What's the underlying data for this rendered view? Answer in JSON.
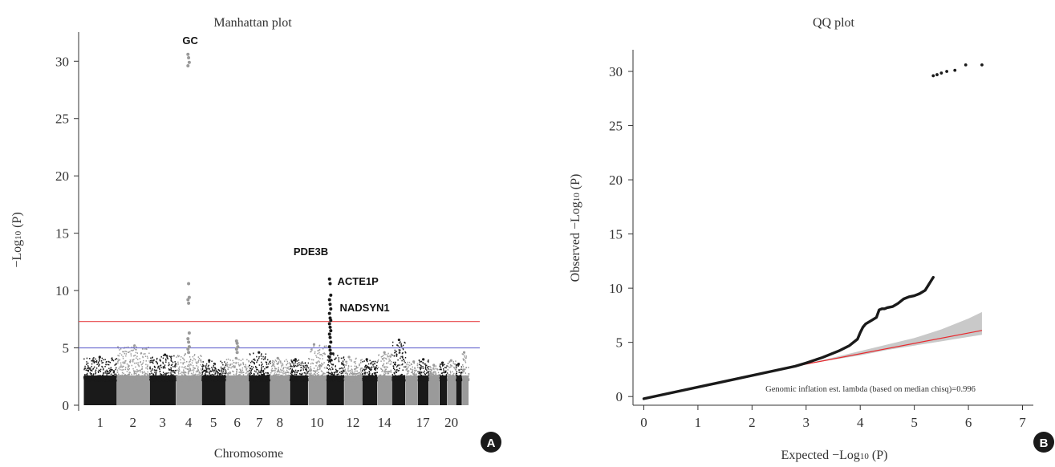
{
  "panel_a_badge": "A",
  "panel_b_badge": "B",
  "colors": {
    "dark": "#1a1a1a",
    "light": "#9a9a9a",
    "genome_wide_line": "#e8474a",
    "suggestive_line": "#6a6ad0",
    "fit_line": "#e8292e",
    "ci_band": "#c9c9c9"
  },
  "chart_data": [
    {
      "type": "scatter",
      "title": "Manhattan plot",
      "xlabel": "Chromosome",
      "ylabel_main": "−Log",
      "ylabel_sub": "10",
      "ylabel_rest": " (P)",
      "ylim": [
        0,
        31
      ],
      "y_ticks": [
        "0",
        "5",
        "10",
        "15",
        "20",
        "25",
        "30"
      ],
      "chromosomes": [
        "1",
        "2",
        "3",
        "4",
        "5",
        "6",
        "7",
        "8",
        "9",
        "10",
        "11",
        "12",
        "13",
        "14",
        "15",
        "16",
        "17",
        "18",
        "19",
        "20",
        "21",
        "22"
      ],
      "x_tick_labels": [
        "1",
        "2",
        "3",
        "4",
        "5",
        "6",
        "7",
        "8",
        "10",
        "12",
        "14",
        "17",
        "20"
      ],
      "x_tick_chromosomes": [
        "1",
        "2",
        "3",
        "4",
        "5",
        "6",
        "7",
        "8",
        "10",
        "12",
        "14",
        "17",
        "20"
      ],
      "thresholds": [
        {
          "name": "genome-wide",
          "value": 7.3
        },
        {
          "name": "suggestive",
          "value": 5.0
        }
      ],
      "background_max": [
        4.2,
        5.2,
        4.4,
        4.6,
        3.9,
        4.1,
        4.6,
        4.1,
        4.0,
        5.3,
        4.5,
        4.2,
        4.0,
        4.6,
        5.7,
        3.8,
        4.0,
        3.5,
        3.7,
        3.9,
        3.6,
        4.6
      ],
      "annotations": [
        {
          "label": "GC",
          "chromosome": "4",
          "y": 31.5
        },
        {
          "label": "PDE3B",
          "chromosome": "11",
          "y": 13.1
        },
        {
          "label": "ACTE1P",
          "chromosome": "11",
          "y": 10.5
        },
        {
          "label": "NADSYN1",
          "chromosome": "11",
          "y": 8.2
        }
      ],
      "peaks": [
        {
          "chromosome": "4",
          "y": [
            30.6,
            30.3,
            29.9,
            29.6,
            10.6,
            9.4,
            9.2,
            8.9,
            6.3,
            5.8,
            5.5,
            5.1,
            4.9,
            4.6
          ]
        },
        {
          "chromosome": "11",
          "y": [
            11.0,
            10.6,
            9.6,
            9.2,
            8.8,
            8.4,
            8.0,
            7.6,
            7.4,
            7.1,
            6.8,
            6.5,
            6.2,
            5.9,
            5.5,
            5.1,
            4.8,
            4.5,
            4.2,
            3.9
          ]
        },
        {
          "chromosome": "6",
          "y": [
            5.6,
            5.4,
            5.1,
            4.9,
            4.6
          ]
        }
      ]
    },
    {
      "type": "scatter",
      "title": "QQ plot",
      "xlabel_main": "Expected −Log",
      "xlabel_sub": "10",
      "xlabel_rest": " (P)",
      "ylabel_main": "Observed −Log",
      "ylabel_sub": "10",
      "ylabel_rest": " (P)",
      "xlim": [
        -0.2,
        7.2
      ],
      "ylim": [
        -0.8,
        32
      ],
      "x_ticks": [
        "0",
        "1",
        "2",
        "3",
        "4",
        "5",
        "6",
        "7"
      ],
      "y_ticks": [
        "0",
        "5",
        "10",
        "15",
        "20",
        "25",
        "30"
      ],
      "annotation": "Genomic inflation est. lambda (based on median chisq)=0.996",
      "lambda": 0.996,
      "fit_line": {
        "x": [
          2.9,
          6.25
        ],
        "y": [
          2.9,
          6.1
        ]
      },
      "ci_band": {
        "x": [
          2.9,
          3.5,
          4.0,
          4.5,
          5.0,
          5.5,
          6.0,
          6.25
        ],
        "lower": [
          2.9,
          3.4,
          3.8,
          4.3,
          4.7,
          5.1,
          5.5,
          5.7
        ],
        "upper": [
          2.9,
          3.6,
          4.2,
          4.8,
          5.4,
          6.2,
          7.2,
          7.8
        ]
      },
      "deviation_curve": {
        "x": [
          2.8,
          3.0,
          3.3,
          3.6,
          3.8,
          3.95,
          4.0,
          4.05,
          4.1,
          4.2,
          4.3,
          4.35,
          4.4,
          4.45,
          4.5,
          4.6,
          4.7,
          4.8,
          4.9,
          5.0,
          5.1,
          5.2,
          5.25,
          5.3,
          5.35
        ],
        "y": [
          2.8,
          3.1,
          3.6,
          4.2,
          4.7,
          5.3,
          5.9,
          6.4,
          6.7,
          7.0,
          7.3,
          8.0,
          8.1,
          8.1,
          8.2,
          8.3,
          8.6,
          9.0,
          9.2,
          9.3,
          9.5,
          9.8,
          10.2,
          10.6,
          11.0
        ]
      },
      "top_points": [
        {
          "x": 5.35,
          "y": 29.6
        },
        {
          "x": 5.42,
          "y": 29.7
        },
        {
          "x": 5.5,
          "y": 29.85
        },
        {
          "x": 5.6,
          "y": 30.0
        },
        {
          "x": 5.75,
          "y": 30.1
        },
        {
          "x": 5.95,
          "y": 30.6
        },
        {
          "x": 6.25,
          "y": 30.6
        }
      ]
    }
  ]
}
